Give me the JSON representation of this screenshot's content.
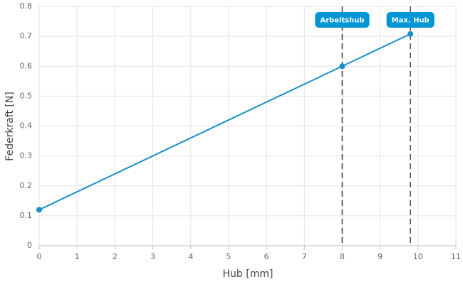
{
  "chart_data": {
    "type": "line",
    "x": [
      0,
      8,
      9.8
    ],
    "values": [
      0.12,
      0.6,
      0.708
    ],
    "color": "#1a8fc9",
    "xlabel": "Hub [mm]",
    "ylabel": "Federkraft [N]",
    "xlim": [
      0,
      11
    ],
    "xticks": [
      0,
      1,
      2,
      3,
      4,
      5,
      6,
      7,
      8,
      9,
      10,
      11
    ],
    "ylim": [
      0,
      0.8
    ],
    "yticks": [
      0,
      0.1,
      0.2,
      0.3,
      0.4,
      0.5,
      0.6,
      0.7,
      0.8
    ],
    "grid": true,
    "annotations": [
      {
        "x": 8,
        "label": "Arbeitshub"
      },
      {
        "x": 9.8,
        "label": "Max. Hub"
      }
    ],
    "annotation_color": "#0096d6"
  }
}
